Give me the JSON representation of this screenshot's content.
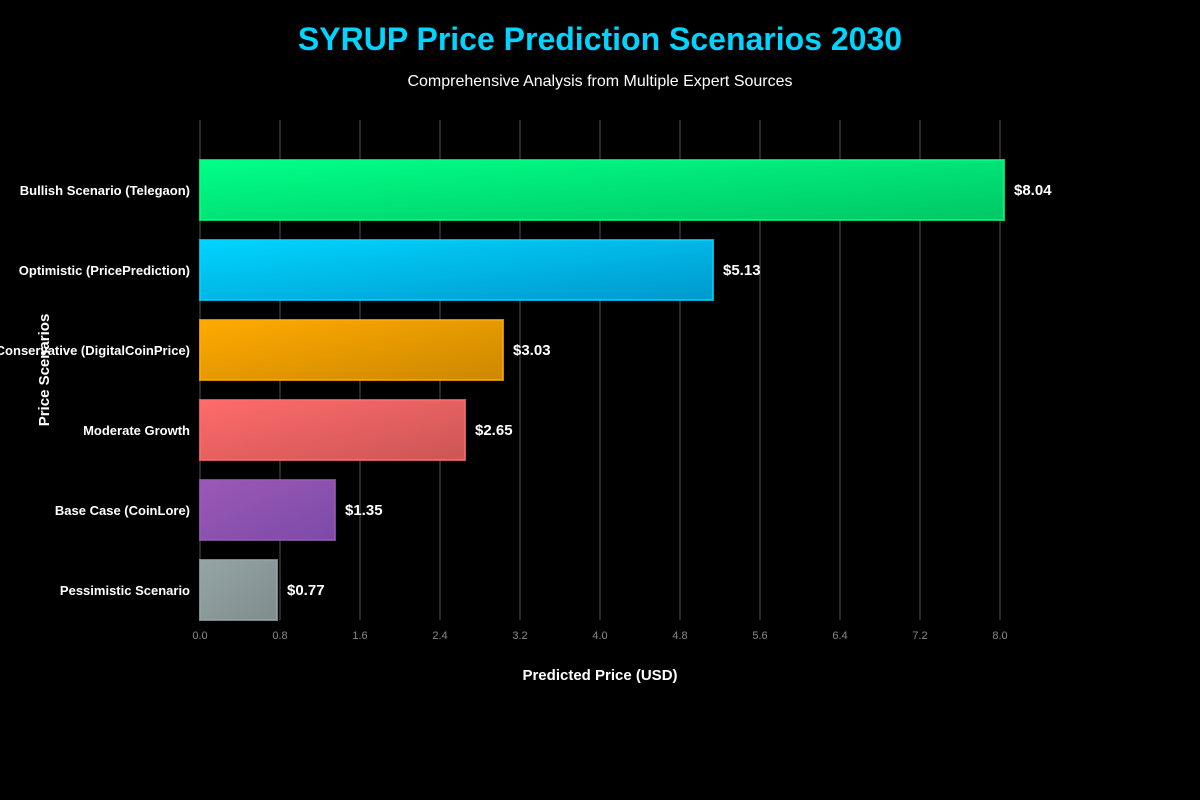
{
  "chart_data": {
    "type": "bar",
    "orientation": "horizontal",
    "title": "SYRUP Price Prediction Scenarios 2030",
    "subtitle": "Comprehensive Analysis from Multiple Expert Sources",
    "xlabel": "Predicted Price (USD)",
    "ylabel": "Price Scenarios",
    "xlim": [
      0,
      8.4
    ],
    "xticks": [
      "0.0",
      "0.8",
      "1.6",
      "2.4",
      "3.2",
      "4.0",
      "4.8",
      "5.6",
      "6.4",
      "7.2",
      "8.0"
    ],
    "grid": true,
    "categories": [
      "Bullish Scenario (Telegaon)",
      "Optimistic (PricePrediction)",
      "Conservative (DigitalCoinPrice)",
      "Moderate Growth",
      "Base Case (CoinLore)",
      "Pessimistic Scenario"
    ],
    "values": [
      8.04,
      5.13,
      3.03,
      2.65,
      1.35,
      0.77
    ],
    "data_labels": [
      "$8.04",
      "$5.13",
      "$3.03",
      "$2.65",
      "$1.35",
      "$0.77"
    ],
    "colors": [
      [
        "#00ff88",
        "#00c864"
      ],
      [
        "#00d4ff",
        "#0099cc"
      ],
      [
        "#ffaa00",
        "#cc8800"
      ],
      [
        "#ff6b6b",
        "#cc5555"
      ],
      [
        "#9b59b6",
        "#7d4aa8"
      ],
      [
        "#95a5a6",
        "#7f8c8d"
      ]
    ]
  }
}
